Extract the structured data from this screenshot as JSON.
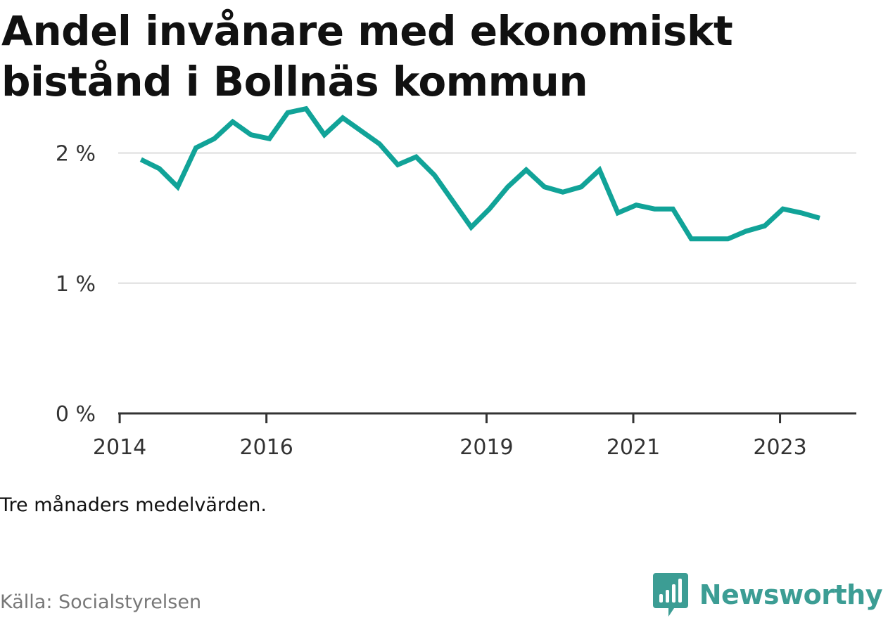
{
  "title": "Andel invånare med ekonomiskt bistånd i Bollnäs kommun",
  "note": "Tre månaders medelvärden.",
  "source": "Källa: Socialstyrelsen",
  "brand": {
    "name": "Newsworthy",
    "icon": "newsworthy-logo-icon",
    "color": "#3c9d94"
  },
  "chart_data": {
    "type": "line",
    "title": "Andel invånare med ekonomiskt bistånd i Bollnäs kommun",
    "xlabel": "",
    "ylabel": "",
    "ylim": [
      0,
      2.5
    ],
    "y_ticks": [
      {
        "value": 0,
        "label": "0 %"
      },
      {
        "value": 1,
        "label": "1 %"
      },
      {
        "value": 2,
        "label": "2 %"
      }
    ],
    "x_ticks": [
      {
        "value": 2014,
        "label": "2014"
      },
      {
        "value": 2016,
        "label": "2016"
      },
      {
        "value": 2019,
        "label": "2019"
      },
      {
        "value": 2021,
        "label": "2021"
      },
      {
        "value": 2023,
        "label": "2023"
      }
    ],
    "grid": true,
    "series": [
      {
        "color": "#11a398",
        "points": [
          [
            2014.29,
            1.95
          ],
          [
            2014.54,
            1.88
          ],
          [
            2014.79,
            1.74
          ],
          [
            2015.04,
            2.04
          ],
          [
            2015.29,
            2.11
          ],
          [
            2015.54,
            2.24
          ],
          [
            2015.79,
            2.14
          ],
          [
            2016.04,
            2.11
          ],
          [
            2016.29,
            2.31
          ],
          [
            2016.54,
            2.34
          ],
          [
            2016.79,
            2.14
          ],
          [
            2017.04,
            2.27
          ],
          [
            2017.29,
            2.17
          ],
          [
            2017.54,
            2.07
          ],
          [
            2017.79,
            1.91
          ],
          [
            2018.04,
            1.97
          ],
          [
            2018.29,
            1.83
          ],
          [
            2018.54,
            1.63
          ],
          [
            2018.79,
            1.43
          ],
          [
            2019.04,
            1.57
          ],
          [
            2019.29,
            1.74
          ],
          [
            2019.54,
            1.87
          ],
          [
            2019.79,
            1.74
          ],
          [
            2020.04,
            1.7
          ],
          [
            2020.29,
            1.74
          ],
          [
            2020.54,
            1.87
          ],
          [
            2020.79,
            1.54
          ],
          [
            2021.04,
            1.6
          ],
          [
            2021.29,
            1.57
          ],
          [
            2021.54,
            1.57
          ],
          [
            2021.79,
            1.34
          ],
          [
            2022.04,
            1.34
          ],
          [
            2022.29,
            1.34
          ],
          [
            2022.54,
            1.4
          ],
          [
            2022.79,
            1.44
          ],
          [
            2023.04,
            1.57
          ],
          [
            2023.29,
            1.54
          ],
          [
            2023.54,
            1.5
          ]
        ]
      }
    ]
  }
}
